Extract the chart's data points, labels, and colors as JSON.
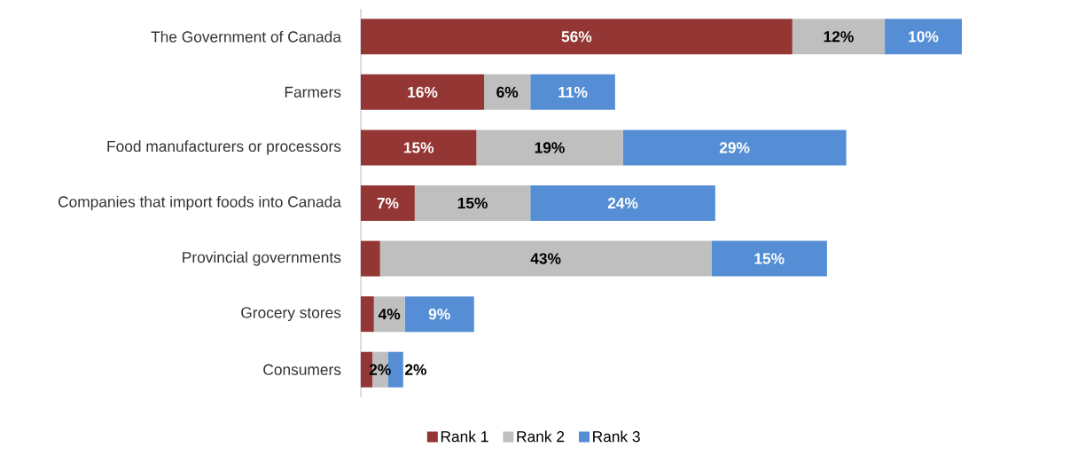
{
  "chart_data": {
    "type": "bar",
    "orientation": "horizontal",
    "stacked": true,
    "legend": "bottom",
    "categories": [
      "The Government of Canada",
      "Farmers",
      "Food manufacturers or processors",
      "Companies that import foods into Canada",
      "Provincial governments",
      "Grocery stores",
      "Consumers"
    ],
    "series": [
      {
        "name": "Rank 1",
        "color": "#943634",
        "values": [
          56,
          16,
          15,
          7,
          2.5,
          1.7,
          1.5
        ],
        "value_labels": [
          "56%",
          "16%",
          "15%",
          "7%",
          null,
          null,
          null
        ]
      },
      {
        "name": "Rank 2",
        "color": "#bfbfbf",
        "values": [
          12,
          6,
          19,
          15,
          43,
          4,
          2
        ],
        "value_labels": [
          "12%",
          "6%",
          "19%",
          "15%",
          "43%",
          "4%",
          "2%"
        ]
      },
      {
        "name": "Rank 3",
        "color": "#558ed5",
        "values": [
          10,
          11,
          29,
          24,
          15,
          9,
          2
        ],
        "value_labels": [
          "10%",
          "11%",
          "29%",
          "24%",
          "15%",
          "9%",
          "2%"
        ]
      }
    ]
  }
}
